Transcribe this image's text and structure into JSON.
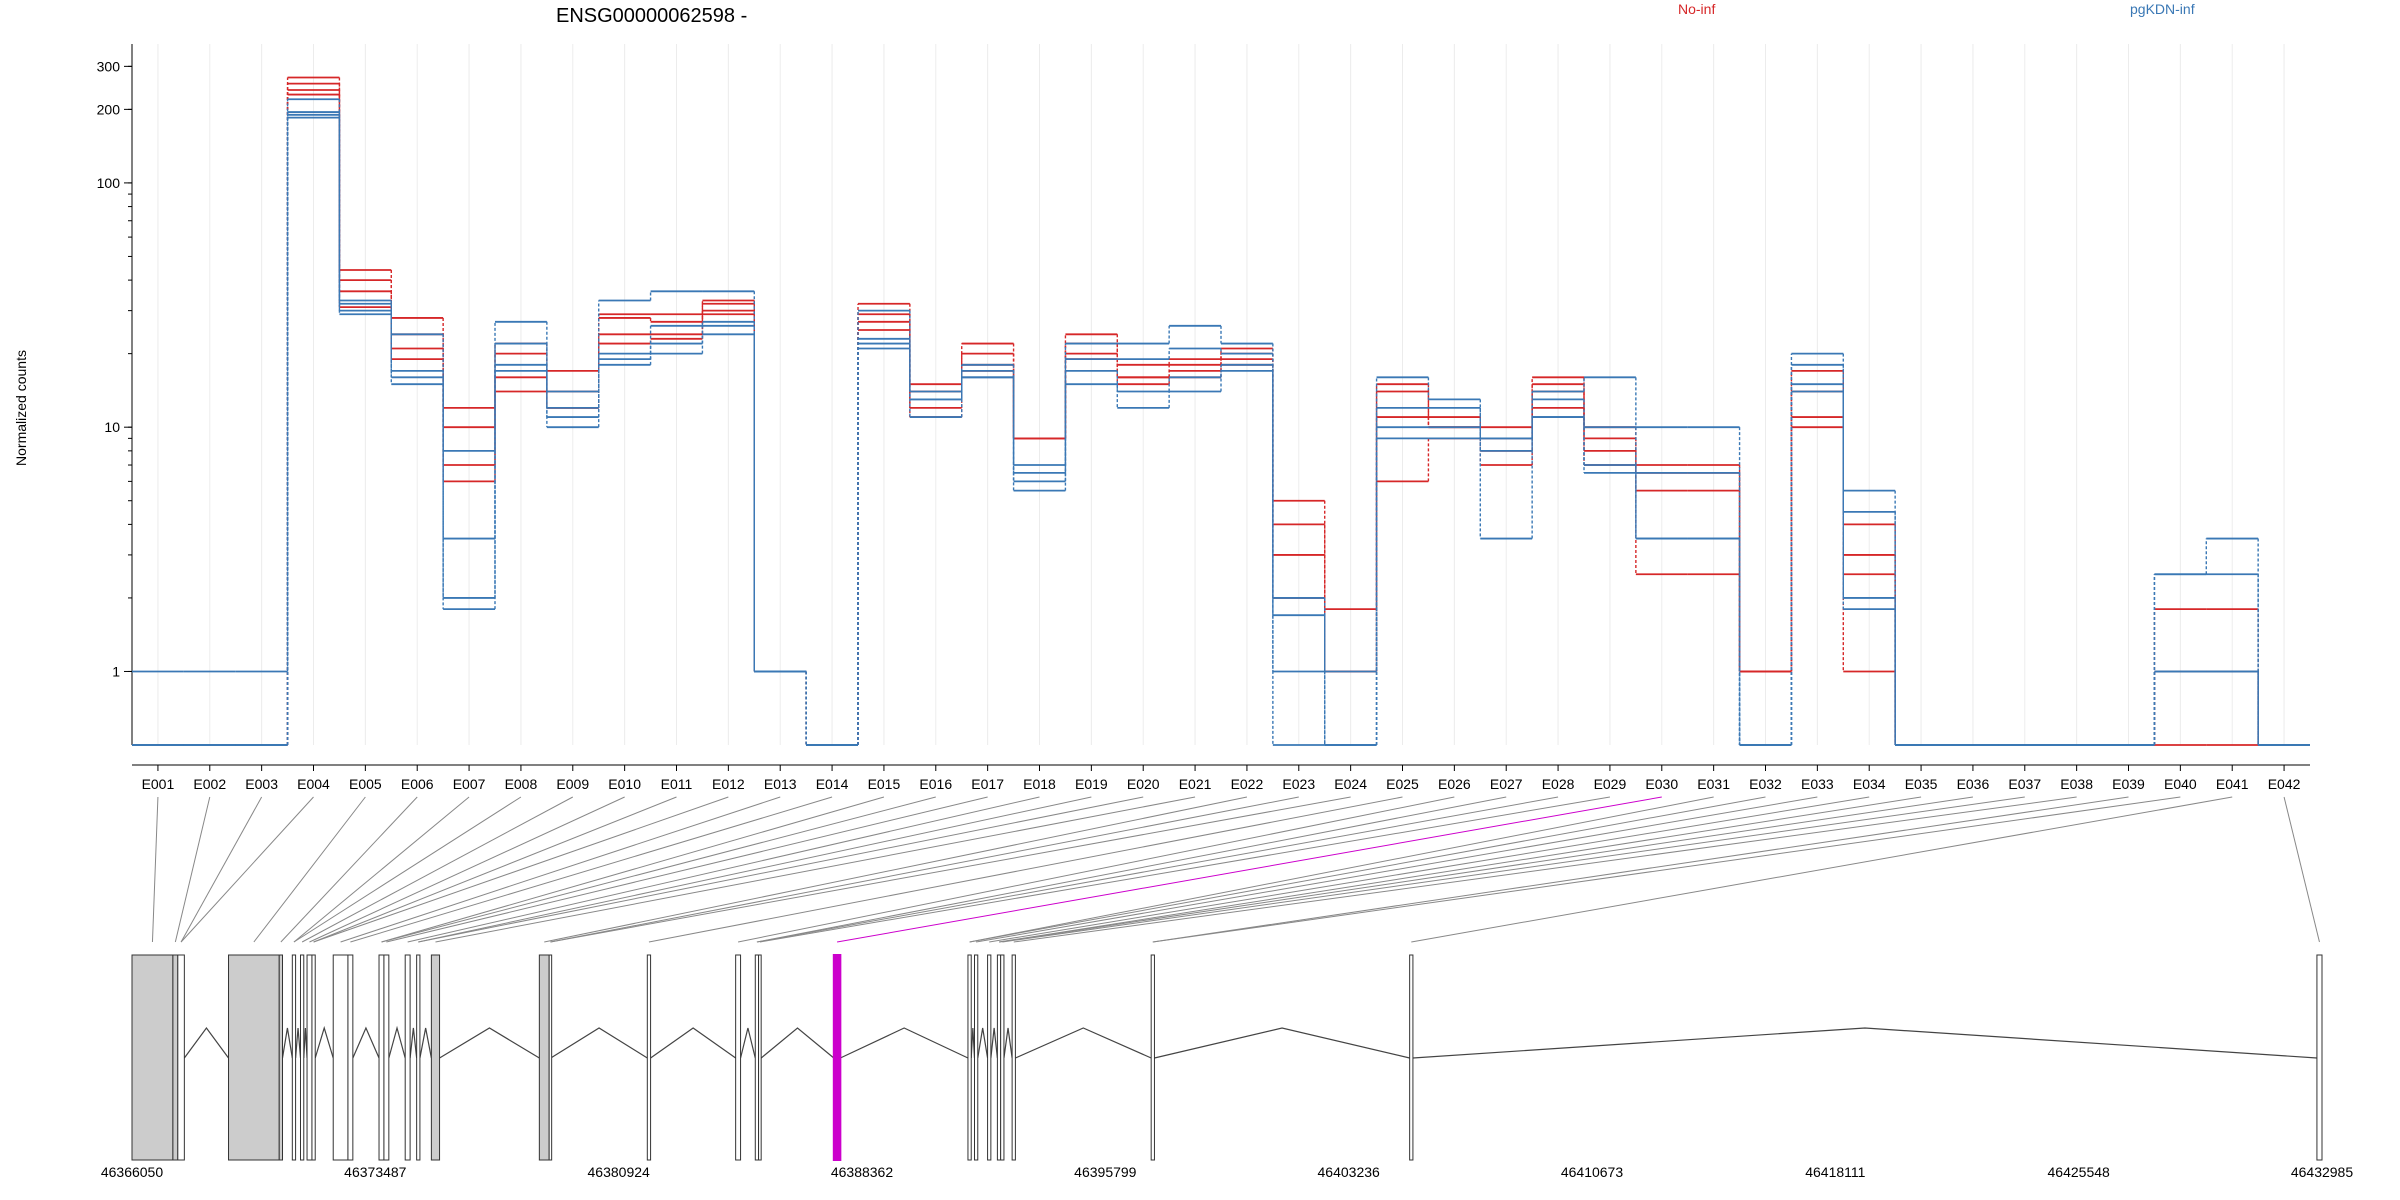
{
  "chart_data": {
    "type": "line",
    "title": "ENSG00000062598 -",
    "ylabel": "Normalized counts",
    "yscale": "log",
    "ylim": [
      0.5,
      350
    ],
    "yticks": [
      "1",
      "10",
      "100",
      "200",
      "300"
    ],
    "grid": "vertical, faint",
    "legend_placement": "top-right",
    "categories": [
      "E001",
      "E002",
      "E003",
      "E004",
      "E005",
      "E006",
      "E007",
      "E008",
      "E009",
      "E010",
      "E011",
      "E012",
      "E013",
      "E014",
      "E015",
      "E016",
      "E017",
      "E018",
      "E019",
      "E020",
      "E021",
      "E022",
      "E023",
      "E024",
      "E025",
      "E026",
      "E027",
      "E028",
      "E029",
      "E030",
      "E031",
      "E032",
      "E033",
      "E034",
      "E035",
      "E036",
      "E037",
      "E038",
      "E039",
      "E040",
      "E041",
      "E042"
    ],
    "groups": [
      {
        "name": "No-inf",
        "color": "#d62728"
      },
      {
        "name": "pgKDN-inf",
        "color": "#3a78b5"
      }
    ],
    "series": [
      {
        "group": "No-inf",
        "values": [
          0.5,
          0.5,
          0.5,
          270,
          44,
          28,
          12,
          22,
          14,
          29,
          29,
          33,
          1,
          0.5,
          32,
          15,
          22,
          9,
          24,
          18,
          19,
          21,
          5,
          1.8,
          15,
          11,
          10,
          16,
          10,
          7,
          7,
          1,
          17,
          4,
          0.5,
          0.5,
          0.5,
          0.5,
          0.5,
          1.8,
          1.8,
          0.5
        ]
      },
      {
        "group": "No-inf",
        "values": [
          0.5,
          0.5,
          0.5,
          255,
          40,
          24,
          10,
          20,
          17,
          28,
          27,
          32,
          1,
          0.5,
          29,
          14,
          20,
          9,
          22,
          16,
          18,
          20,
          4,
          1,
          14,
          10,
          9,
          15,
          9,
          6.5,
          6.5,
          1,
          14,
          3,
          0.5,
          0.5,
          0.5,
          0.5,
          0.5,
          1,
          1,
          0.5
        ]
      },
      {
        "group": "No-inf",
        "values": [
          0.5,
          0.5,
          0.5,
          240,
          36,
          21,
          7,
          16,
          12,
          24,
          24,
          30,
          1,
          0.5,
          27,
          12,
          18,
          9,
          20,
          16,
          17,
          19,
          3,
          1,
          11,
          10,
          8,
          14,
          8,
          5.5,
          5.5,
          1,
          11,
          2.5,
          0.5,
          0.5,
          0.5,
          0.5,
          0.5,
          1,
          1,
          0.5
        ]
      },
      {
        "group": "No-inf",
        "values": [
          0.5,
          0.5,
          0.5,
          230,
          31,
          19,
          6,
          14,
          12,
          22,
          23,
          29,
          1,
          0.5,
          25,
          11,
          17,
          9,
          19,
          15,
          16,
          18,
          2,
          1,
          6,
          9,
          7,
          12,
          7,
          2.5,
          2.5,
          1,
          10,
          1,
          0.5,
          0.5,
          0.5,
          0.5,
          0.5,
          0.5,
          0.5,
          0.5
        ]
      },
      {
        "group": "pgKDN-inf",
        "values": [
          1,
          1,
          1,
          220,
          33,
          24,
          8,
          27,
          14,
          33,
          36,
          36,
          1,
          0.5,
          30,
          14,
          18,
          7,
          22,
          22,
          26,
          22,
          2,
          1,
          16,
          13,
          9,
          14,
          16,
          10,
          10,
          0.5,
          20,
          5.5,
          0.5,
          0.5,
          0.5,
          0.5,
          0.5,
          2.5,
          3.5,
          0.5
        ]
      },
      {
        "group": "pgKDN-inf",
        "values": [
          0.5,
          0.5,
          0.5,
          195,
          32,
          17,
          3.5,
          22,
          12,
          20,
          26,
          27,
          1,
          0.5,
          23,
          13,
          17,
          6.5,
          19,
          19,
          21,
          20,
          1.7,
          0.5,
          12,
          12,
          9,
          13,
          10,
          6.5,
          6.5,
          0.5,
          18,
          4.5,
          0.5,
          0.5,
          0.5,
          0.5,
          0.5,
          2.5,
          2.5,
          0.5
        ]
      },
      {
        "group": "pgKDN-inf",
        "values": [
          0.5,
          0.5,
          0.5,
          190,
          29,
          15,
          2,
          18,
          11,
          19,
          22,
          26,
          1,
          0.5,
          22,
          13,
          16,
          6,
          17,
          14,
          16,
          18,
          1,
          0.5,
          10,
          10,
          8,
          11,
          7,
          3.5,
          3.5,
          0.5,
          15,
          2,
          0.5,
          0.5,
          0.5,
          0.5,
          0.5,
          1,
          1,
          0.5
        ]
      },
      {
        "group": "pgKDN-inf",
        "values": [
          0.5,
          0.5,
          0.5,
          185,
          30,
          16,
          1.8,
          17,
          10,
          18,
          20,
          24,
          1,
          0.5,
          21,
          11,
          16,
          5.5,
          15,
          12,
          14,
          17,
          0.5,
          0.5,
          9,
          9,
          3.5,
          11,
          6.5,
          3.5,
          3.5,
          0.5,
          14,
          1.8,
          0.5,
          0.5,
          0.5,
          0.5,
          0.5,
          1,
          1,
          0.5
        ]
      }
    ],
    "gene_model": {
      "coord_ticks": [
        "46366050",
        "46373487",
        "46380924",
        "46388362",
        "46395799",
        "46403236",
        "46410673",
        "46418111",
        "46425548",
        "46432985"
      ],
      "coord_range": [
        46366050,
        46432985
      ],
      "highlight_color": "#cc00cc",
      "exons": [
        {
          "id": "E001",
          "start": 46366050,
          "end": 46367300,
          "fill": "#cccccc"
        },
        {
          "id": "E002",
          "start": 46367300,
          "end": 46367450,
          "fill": "#cccccc"
        },
        {
          "id": "E003",
          "start": 46367450,
          "end": 46367650,
          "fill": "#ffffff"
        },
        {
          "id": "E004",
          "start": 46369000,
          "end": 46370550,
          "fill": "#cccccc"
        },
        {
          "id": "E005",
          "start": 46370550,
          "end": 46370650,
          "fill": "#cccccc"
        },
        {
          "id": "E006",
          "start": 46370950,
          "end": 46371050,
          "fill": "#ffffff"
        },
        {
          "id": "E007",
          "start": 46371200,
          "end": 46371300,
          "fill": "#ffffff"
        },
        {
          "id": "E008",
          "start": 46371400,
          "end": 46371550,
          "fill": "#ffffff"
        },
        {
          "id": "E009",
          "start": 46371550,
          "end": 46371650,
          "fill": "#ffffff"
        },
        {
          "id": "E010",
          "start": 46372200,
          "end": 46372650,
          "fill": "#ffffff"
        },
        {
          "id": "E011",
          "start": 46372650,
          "end": 46372800,
          "fill": "#ffffff"
        },
        {
          "id": "E012",
          "start": 46373600,
          "end": 46373750,
          "fill": "#ffffff"
        },
        {
          "id": "E013",
          "start": 46373750,
          "end": 46373900,
          "fill": "#ffffff"
        },
        {
          "id": "E014",
          "start": 46374400,
          "end": 46374550,
          "fill": "#ffffff"
        },
        {
          "id": "E015",
          "start": 46374750,
          "end": 46374850,
          "fill": "#ffffff"
        },
        {
          "id": "E016",
          "start": 46375200,
          "end": 46375450,
          "fill": "#cccccc"
        },
        {
          "id": "E017",
          "start": 46378500,
          "end": 46378800,
          "fill": "#cccccc"
        },
        {
          "id": "E018",
          "start": 46378800,
          "end": 46378850,
          "fill": "#ffffff"
        },
        {
          "id": "E019",
          "start": 46381800,
          "end": 46381900,
          "fill": "#ffffff"
        },
        {
          "id": "E020",
          "start": 46384500,
          "end": 46384650,
          "fill": "#ffffff"
        },
        {
          "id": "E021",
          "start": 46385100,
          "end": 46385200,
          "fill": "#ffffff"
        },
        {
          "id": "E022",
          "start": 46385200,
          "end": 46385280,
          "fill": "#ffffff"
        },
        {
          "id": "E023",
          "start": 46387500,
          "end": 46387700,
          "fill": "#cc00cc"
        },
        {
          "id": "E024",
          "start": 46391600,
          "end": 46391700,
          "fill": "#ffffff"
        },
        {
          "id": "E025",
          "start": 46391800,
          "end": 46391900,
          "fill": "#ffffff"
        },
        {
          "id": "E026",
          "start": 46392200,
          "end": 46392300,
          "fill": "#ffffff"
        },
        {
          "id": "E027",
          "start": 46392500,
          "end": 46392600,
          "fill": "#ffffff"
        },
        {
          "id": "E028",
          "start": 46392600,
          "end": 46392700,
          "fill": "#ffffff"
        },
        {
          "id": "E029",
          "start": 46392950,
          "end": 46393050,
          "fill": "#ffffff"
        },
        {
          "id": "E030",
          "start": 46397200,
          "end": 46397300,
          "fill": "#ffffff"
        },
        {
          "id": "E031",
          "start": 46405100,
          "end": 46405200,
          "fill": "#ffffff"
        },
        {
          "id": "E032",
          "start": 46432830,
          "end": 46432985,
          "fill": "#ffffff"
        }
      ]
    }
  }
}
